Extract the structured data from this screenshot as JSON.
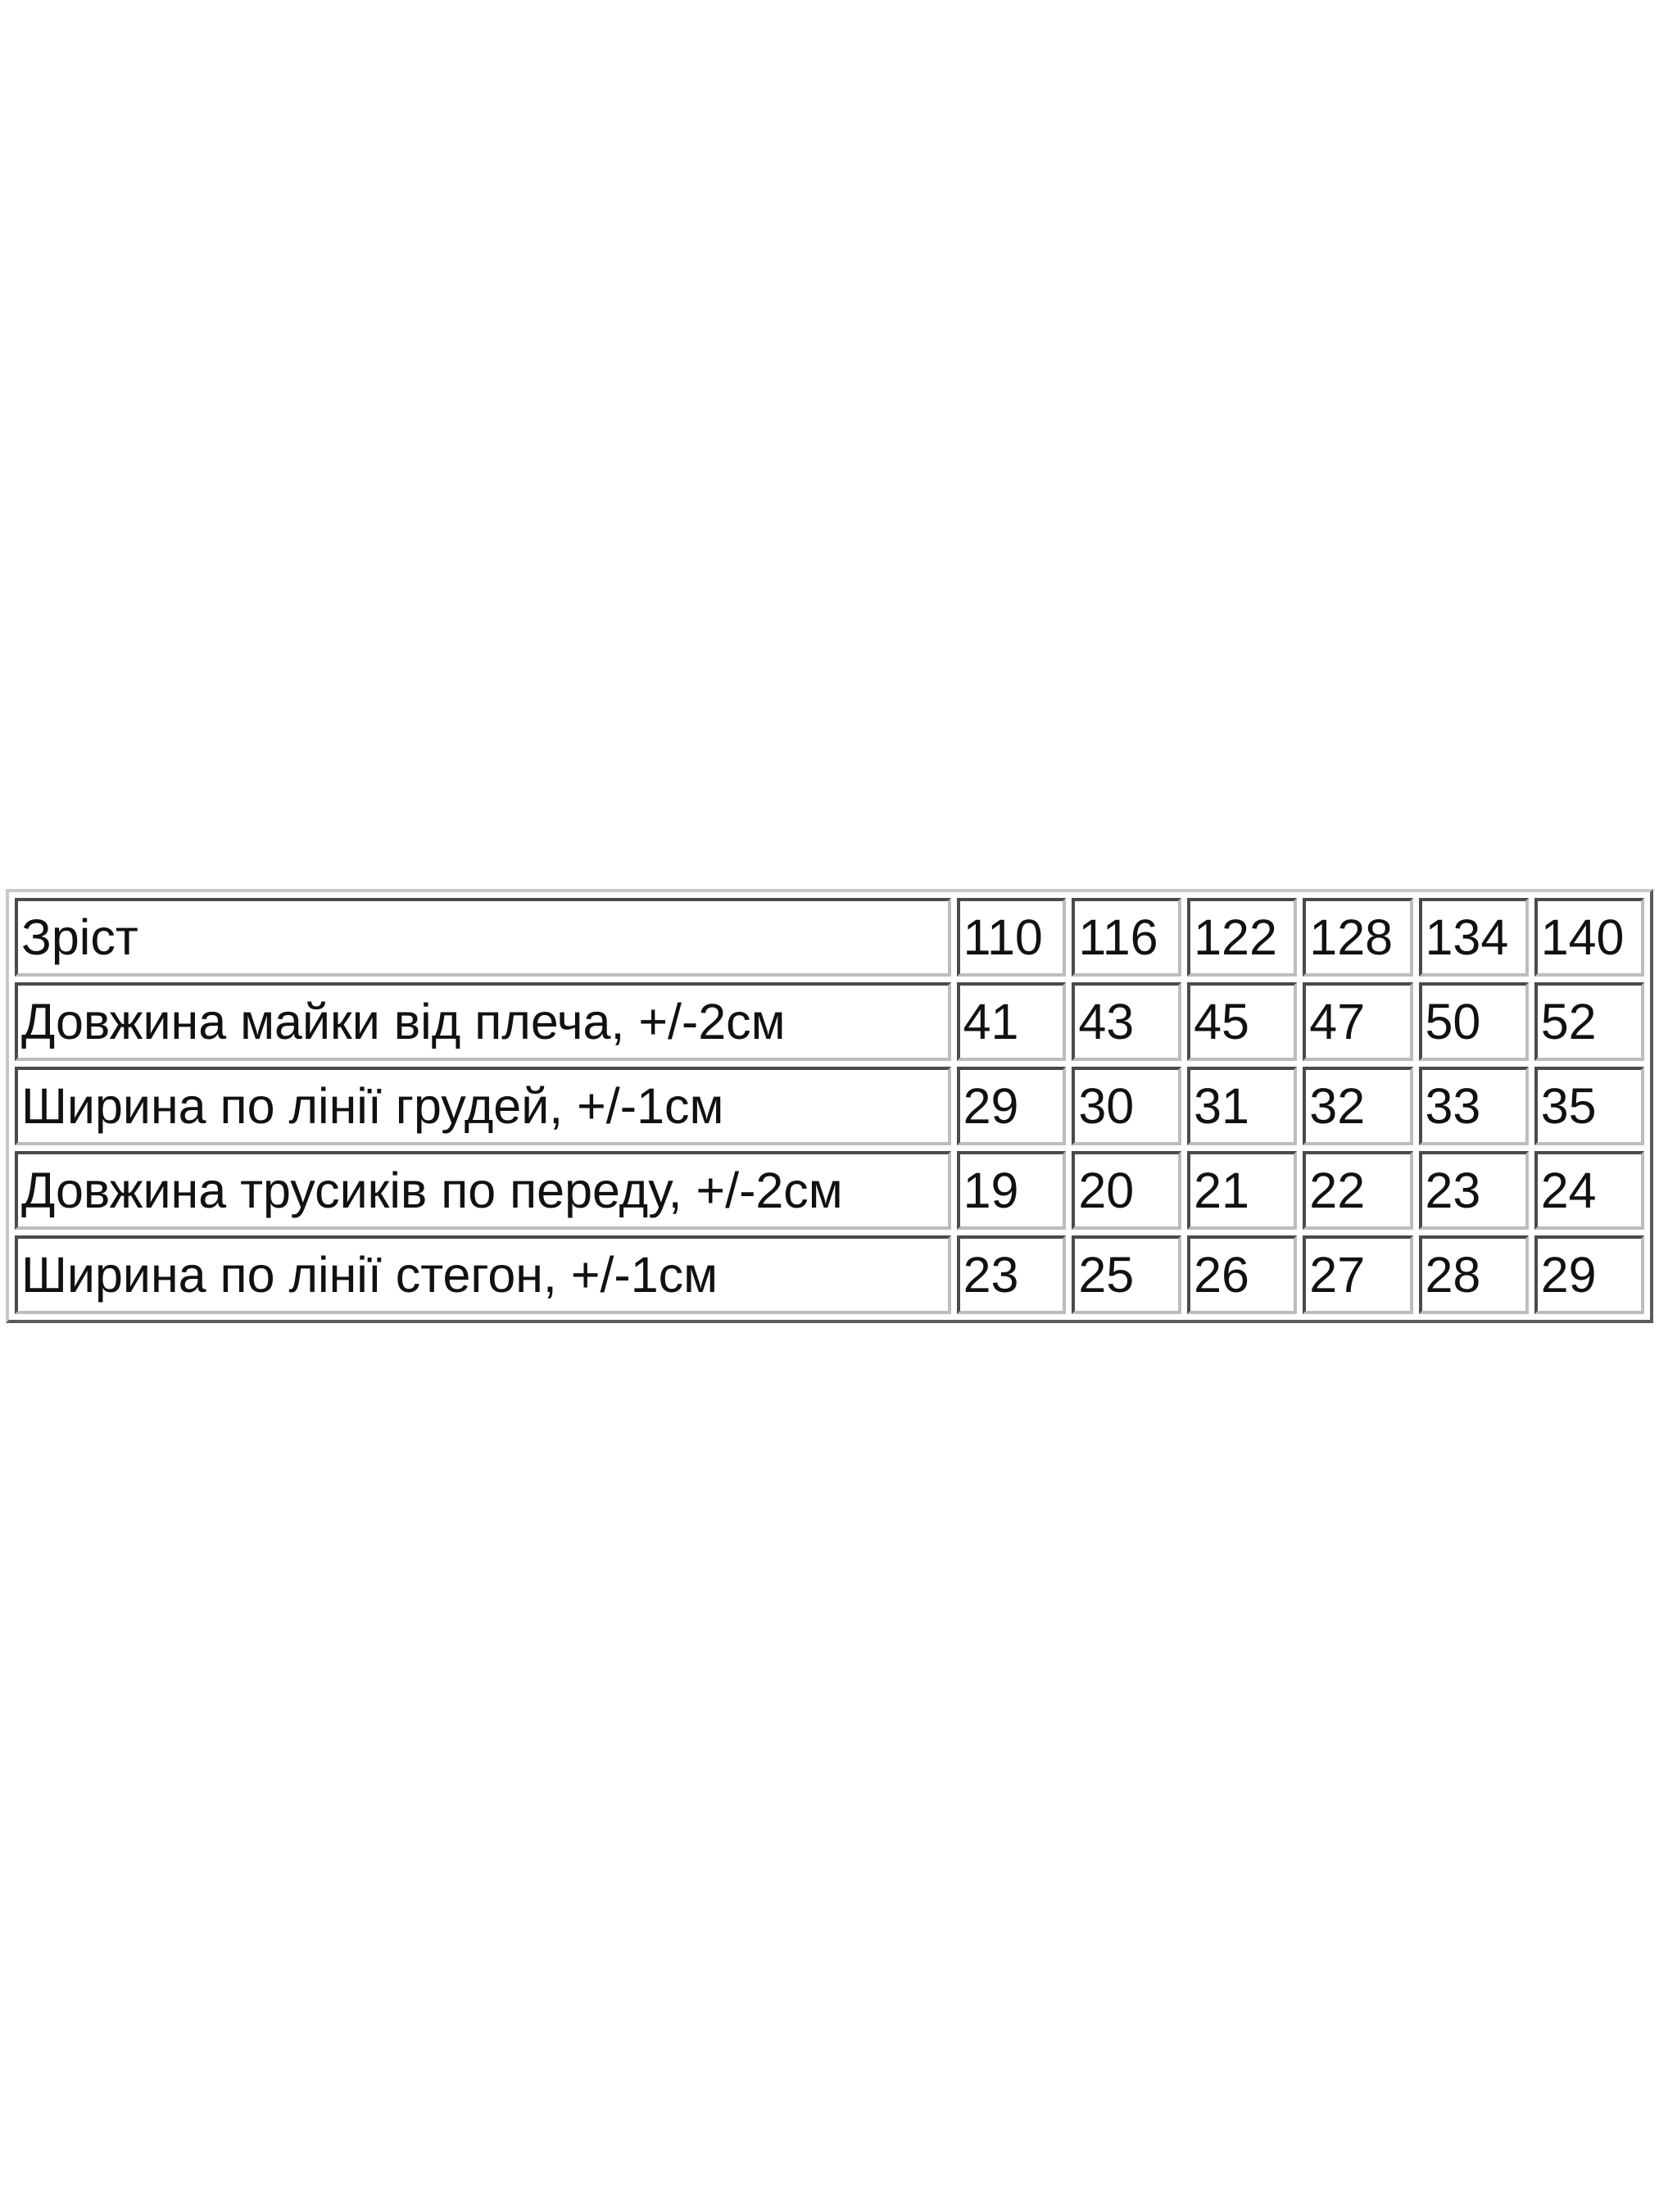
{
  "table": {
    "header": {
      "label": "Зріст",
      "sizes": [
        "110",
        "116",
        "122",
        "128",
        "134",
        "140"
      ]
    },
    "rows": [
      {
        "label": "Довжина майки від плеча, +/-2см",
        "values": [
          "41",
          "43",
          "45",
          "47",
          "50",
          "52"
        ]
      },
      {
        "label": "Ширина по лінії грудей, +/-1см",
        "values": [
          "29",
          "30",
          "31",
          "32",
          "33",
          "35"
        ]
      },
      {
        "label": "Довжина трусиків по переду, +/-2см",
        "values": [
          "19",
          "20",
          "21",
          "22",
          "23",
          "24"
        ]
      },
      {
        "label": "Ширина по лінії стегон, +/-1см",
        "values": [
          "23",
          "25",
          "26",
          "27",
          "28",
          "29"
        ]
      }
    ]
  }
}
